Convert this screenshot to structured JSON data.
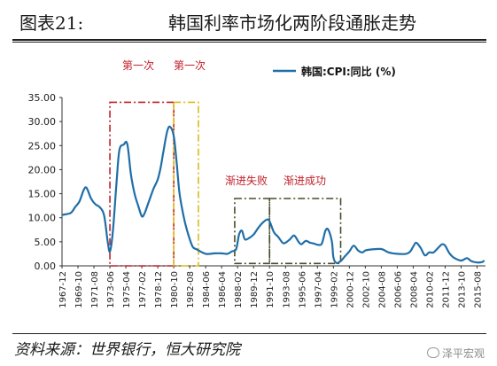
{
  "header": {
    "figure_number": "图表21:",
    "title": "韩国利率市场化两阶段通胀走势"
  },
  "footer": {
    "source": "资料来源：世界银行，恒大研究院",
    "watermark": "泽平宏观",
    "watermark_icon": "wechat-icon"
  },
  "chart_data": {
    "type": "line",
    "title": "",
    "xlabel": "",
    "ylabel": "",
    "ylim": [
      0,
      35
    ],
    "yticks": [
      "0.00",
      "5.00",
      "10.00",
      "15.00",
      "20.00",
      "25.00",
      "30.00",
      "35.00"
    ],
    "xticks": [
      "1967-12",
      "1969-10",
      "1971-08",
      "1973-06",
      "1975-04",
      "1977-02",
      "1978-12",
      "1980-10",
      "1982-08",
      "1984-06",
      "1986-04",
      "1988-02",
      "1989-12",
      "1991-10",
      "1993-08",
      "1995-06",
      "1997-04",
      "1999-02",
      "2000-12",
      "2002-10",
      "2004-08",
      "2006-06",
      "2008-04",
      "2010-02",
      "2011-12",
      "2013-10",
      "2015-08"
    ],
    "grid": false,
    "legend": "top-right",
    "series": [
      {
        "name": "韩国:CPI:同比 (%)",
        "color": "#1f6ea8",
        "points": [
          [
            "1967-12",
            10.6
          ],
          [
            "1968-12",
            11.0
          ],
          [
            "1969-06",
            12.2
          ],
          [
            "1969-12",
            13.4
          ],
          [
            "1970-06",
            15.8
          ],
          [
            "1970-10",
            16.2
          ],
          [
            "1971-04",
            14.0
          ],
          [
            "1971-10",
            12.8
          ],
          [
            "1972-04",
            12.2
          ],
          [
            "1972-10",
            10.5
          ],
          [
            "1973-03",
            5.0
          ],
          [
            "1973-06",
            3.0
          ],
          [
            "1973-10",
            7.0
          ],
          [
            "1974-03",
            17.0
          ],
          [
            "1974-07",
            24.0
          ],
          [
            "1975-01",
            25.2
          ],
          [
            "1975-06",
            25.3
          ],
          [
            "1975-11",
            19.0
          ],
          [
            "1976-04",
            15.0
          ],
          [
            "1976-09",
            12.5
          ],
          [
            "1977-02",
            10.3
          ],
          [
            "1977-06",
            11.0
          ],
          [
            "1977-12",
            13.5
          ],
          [
            "1978-06",
            16.0
          ],
          [
            "1978-12",
            18.0
          ],
          [
            "1979-04",
            20.5
          ],
          [
            "1979-08",
            24.0
          ],
          [
            "1980-01",
            28.0
          ],
          [
            "1980-05",
            28.9
          ],
          [
            "1980-10",
            27.0
          ],
          [
            "1981-02",
            21.5
          ],
          [
            "1981-06",
            15.0
          ],
          [
            "1981-12",
            10.0
          ],
          [
            "1982-06",
            6.5
          ],
          [
            "1982-12",
            4.0
          ],
          [
            "1983-06",
            3.4
          ],
          [
            "1984-06",
            2.5
          ],
          [
            "1985-06",
            2.6
          ],
          [
            "1986-04",
            2.6
          ],
          [
            "1986-12",
            2.5
          ],
          [
            "1987-06",
            3.0
          ],
          [
            "1987-12",
            3.5
          ],
          [
            "1988-04",
            6.5
          ],
          [
            "1988-08",
            7.3
          ],
          [
            "1988-12",
            5.5
          ],
          [
            "1989-06",
            5.8
          ],
          [
            "1989-12",
            6.5
          ],
          [
            "1990-06",
            7.8
          ],
          [
            "1990-12",
            8.9
          ],
          [
            "1991-06",
            9.6
          ],
          [
            "1991-10",
            9.3
          ],
          [
            "1992-04",
            7.0
          ],
          [
            "1992-10",
            6.0
          ],
          [
            "1993-04",
            4.8
          ],
          [
            "1993-08",
            4.8
          ],
          [
            "1994-02",
            5.5
          ],
          [
            "1994-08",
            6.3
          ],
          [
            "1995-02",
            5.0
          ],
          [
            "1995-06",
            4.5
          ],
          [
            "1995-12",
            5.2
          ],
          [
            "1996-06",
            4.8
          ],
          [
            "1996-12",
            4.6
          ],
          [
            "1997-04",
            4.4
          ],
          [
            "1997-10",
            4.6
          ],
          [
            "1998-03",
            7.3
          ],
          [
            "1998-07",
            7.5
          ],
          [
            "1998-12",
            5.0
          ],
          [
            "1999-02",
            1.8
          ],
          [
            "1999-06",
            0.6
          ],
          [
            "1999-12",
            1.0
          ],
          [
            "2000-06",
            2.0
          ],
          [
            "2000-12",
            3.0
          ],
          [
            "2001-06",
            4.2
          ],
          [
            "2001-12",
            3.2
          ],
          [
            "2002-06",
            2.8
          ],
          [
            "2002-10",
            3.2
          ],
          [
            "2003-06",
            3.4
          ],
          [
            "2004-08",
            3.5
          ],
          [
            "2005-06",
            2.8
          ],
          [
            "2006-06",
            2.5
          ],
          [
            "2007-06",
            2.5
          ],
          [
            "2007-12",
            3.0
          ],
          [
            "2008-04",
            4.0
          ],
          [
            "2008-08",
            4.8
          ],
          [
            "2009-02",
            3.8
          ],
          [
            "2009-08",
            2.2
          ],
          [
            "2010-02",
            2.8
          ],
          [
            "2010-08",
            2.8
          ],
          [
            "2011-04",
            4.0
          ],
          [
            "2011-08",
            4.5
          ],
          [
            "2011-12",
            4.2
          ],
          [
            "2012-06",
            2.6
          ],
          [
            "2012-12",
            1.7
          ],
          [
            "2013-10",
            1.1
          ],
          [
            "2014-06",
            1.6
          ],
          [
            "2014-12",
            1.0
          ],
          [
            "2015-08",
            0.7
          ],
          [
            "2016-03",
            0.8
          ],
          [
            "2016-06",
            1.1
          ]
        ]
      }
    ],
    "annotations": [
      {
        "label": "第一次",
        "color": "#c0202a",
        "style": "dash-dot",
        "x_start": "1973-06",
        "x_end": "1980-10",
        "y_start": 0,
        "y_end": 34.0
      },
      {
        "label": "第一次",
        "color": "#e0b818",
        "style": "dash-dot",
        "x_start": "1980-10",
        "x_end": "1983-08",
        "y_start": 0,
        "y_end": 34.0
      },
      {
        "label": "渐进失败",
        "color": "#4a4a2a",
        "style": "dash-dot",
        "x_start": "1987-10",
        "x_end": "1991-10",
        "y_start": 0.5,
        "y_end": 14.0
      },
      {
        "label": "渐进成功",
        "color": "#4a4a2a",
        "style": "dash-dot",
        "x_start": "1991-10",
        "x_end": "1999-12",
        "y_start": 0.5,
        "y_end": 14.0
      }
    ]
  }
}
